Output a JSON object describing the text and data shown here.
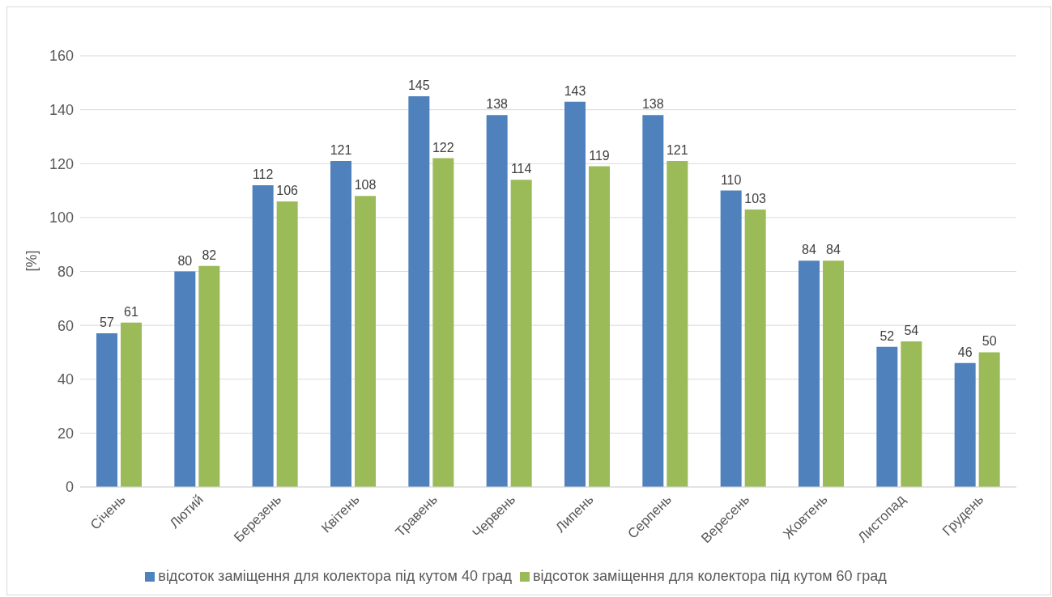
{
  "chart_data": {
    "type": "bar",
    "ylabel": "[%]",
    "categories": [
      "Січень",
      "Лютий",
      "Березень",
      "Квітень",
      "Травень",
      "Червень",
      "Липень",
      "Серпень",
      "Вересень",
      "Жовтень",
      "Листопад",
      "Грудень"
    ],
    "series": [
      {
        "name": "відсоток заміщення для колектора під кутом 40 град",
        "color": "#4f81bd",
        "values": [
          57,
          80,
          112,
          121,
          145,
          138,
          143,
          138,
          110,
          84,
          52,
          46
        ]
      },
      {
        "name": "відсоток заміщення для колектора під кутом 60 град",
        "color": "#9bbb59",
        "values": [
          61,
          82,
          106,
          108,
          122,
          114,
          119,
          121,
          103,
          84,
          54,
          50
        ]
      }
    ],
    "ylim": [
      0,
      160
    ],
    "yticks": [
      0,
      20,
      40,
      60,
      80,
      100,
      120,
      140,
      160
    ],
    "grid": "y",
    "legend": "bottom",
    "data_labels": true
  }
}
